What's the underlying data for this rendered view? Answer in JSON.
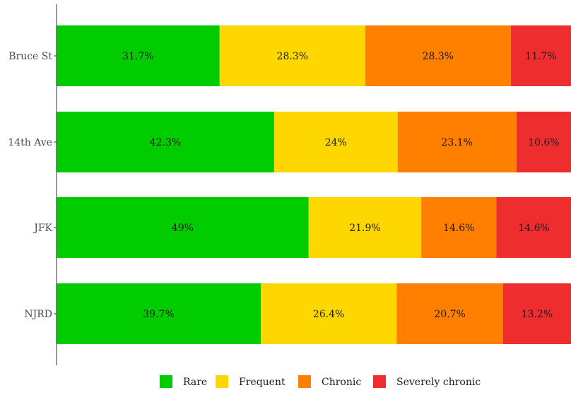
{
  "chart_data": {
    "type": "bar",
    "orientation": "horizontal",
    "stacked": true,
    "categories": [
      "Bruce St",
      "14th Ave",
      "JFK",
      "NJRD"
    ],
    "series": [
      {
        "name": "Rare",
        "color": "#00cc00",
        "values": [
          31.7,
          42.3,
          49,
          39.7
        ],
        "labels": [
          "31.7%",
          "42.3%",
          "49%",
          "39.7%"
        ]
      },
      {
        "name": "Frequent",
        "color": "#ffd700",
        "values": [
          28.3,
          24,
          21.9,
          26.4
        ],
        "labels": [
          "28.3%",
          "24%",
          "21.9%",
          "26.4%"
        ]
      },
      {
        "name": "Chronic",
        "color": "#ff8000",
        "values": [
          28.3,
          23.1,
          14.6,
          20.7
        ],
        "labels": [
          "28.3%",
          "23.1%",
          "14.6%",
          "20.7%"
        ]
      },
      {
        "name": "Severely chronic",
        "color": "#ee2e2e",
        "values": [
          11.7,
          10.6,
          14.6,
          13.2
        ],
        "labels": [
          "11.7%",
          "10.6%",
          "14.6%",
          "13.2%"
        ]
      }
    ],
    "xlim": [
      0,
      100
    ],
    "grid": false,
    "legend_position": "bottom"
  }
}
